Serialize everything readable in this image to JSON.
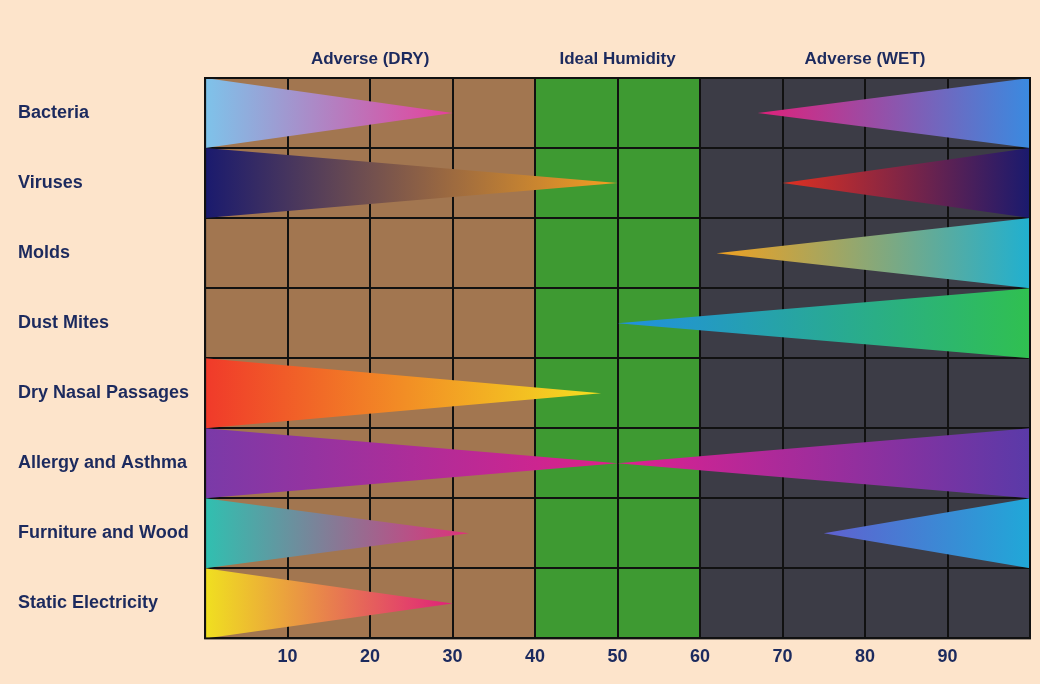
{
  "chart_data": {
    "type": "bar",
    "orientation": "horizontal",
    "grid": true,
    "categories": [
      "Bacteria",
      "Viruses",
      "Molds",
      "Dust Mites",
      "Dry Nasal Passages",
      "Allergy and Asthma",
      "Furniture and Wood",
      "Static Electricity"
    ],
    "zones": [
      {
        "label": "Adverse (DRY)",
        "range": [
          0,
          40
        ],
        "color": "#a27650"
      },
      {
        "label": "Ideal Humidity",
        "range": [
          40,
          60
        ],
        "color": "#3e9a32"
      },
      {
        "label": "Adverse (WET)",
        "range": [
          60,
          100
        ],
        "color": "#3c3c46"
      }
    ],
    "series": [
      {
        "values": [
          [
            0,
            30
          ],
          [
            0,
            50
          ],
          null,
          null,
          [
            0,
            48
          ],
          [
            0,
            50
          ],
          [
            0,
            32
          ],
          [
            0,
            30
          ]
        ],
        "colors": [
          [
            "#7ec3ea",
            "#e6409a"
          ],
          [
            "#1a1a6e",
            "#f5a020"
          ],
          null,
          null,
          [
            "#f03a2a",
            "#f4e020"
          ],
          [
            "#7a3aa8",
            "#e0208a"
          ],
          [
            "#30c0b0",
            "#e0307a"
          ],
          [
            "#f0e020",
            "#e0207a"
          ]
        ]
      },
      {
        "values": [
          [
            67,
            100
          ],
          [
            70,
            100
          ],
          [
            62,
            100
          ],
          [
            50,
            100
          ],
          null,
          [
            50,
            100
          ],
          [
            75,
            100
          ],
          null
        ],
        "colors": [
          [
            "#3a8ae0",
            "#e0207a"
          ],
          [
            "#1a1a6e",
            "#e03020"
          ],
          [
            "#20b0d0",
            "#f0a020"
          ],
          [
            "#30c050",
            "#2090e0"
          ],
          null,
          [
            "#5a3aa8",
            "#e02090"
          ],
          [
            "#20a8d8",
            "#6060d0"
          ],
          null
        ]
      }
    ],
    "xlim": [
      0,
      100
    ],
    "xticks": [
      10,
      20,
      30,
      40,
      50,
      60,
      70,
      80,
      90
    ]
  }
}
